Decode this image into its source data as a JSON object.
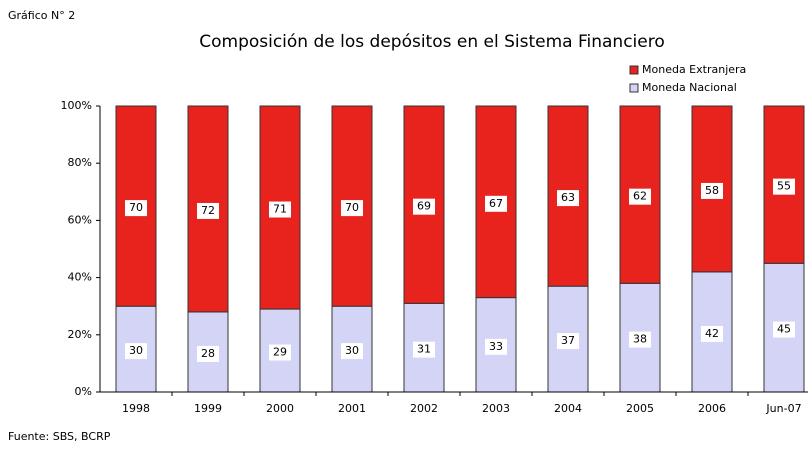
{
  "chart_data": {
    "type": "bar",
    "stacked": true,
    "header": "Gráfico N° 2",
    "title": "Composición de los depósitos en el Sistema Financiero",
    "source": "Fuente: SBS, BCRP",
    "categories": [
      "1998",
      "1999",
      "2000",
      "2001",
      "2002",
      "2003",
      "2004",
      "2005",
      "2006",
      "Jun-07"
    ],
    "series": [
      {
        "name": "Moneda Nacional",
        "color": "#d4d4f6",
        "values": [
          30,
          28,
          29,
          30,
          31,
          33,
          37,
          38,
          42,
          45
        ]
      },
      {
        "name": "Moneda Extranjera",
        "color": "#e8221c",
        "values": [
          70,
          72,
          71,
          70,
          69,
          67,
          63,
          62,
          58,
          55
        ]
      }
    ],
    "ylim": [
      0,
      100
    ],
    "yticks": [
      {
        "value": 0,
        "label": "0%"
      },
      {
        "value": 20,
        "label": "20%"
      },
      {
        "value": 40,
        "label": "40%"
      },
      {
        "value": 60,
        "label": "60%"
      },
      {
        "value": 80,
        "label": "80%"
      },
      {
        "value": 100,
        "label": "100%"
      }
    ],
    "grid": false,
    "legend": "top-right"
  }
}
